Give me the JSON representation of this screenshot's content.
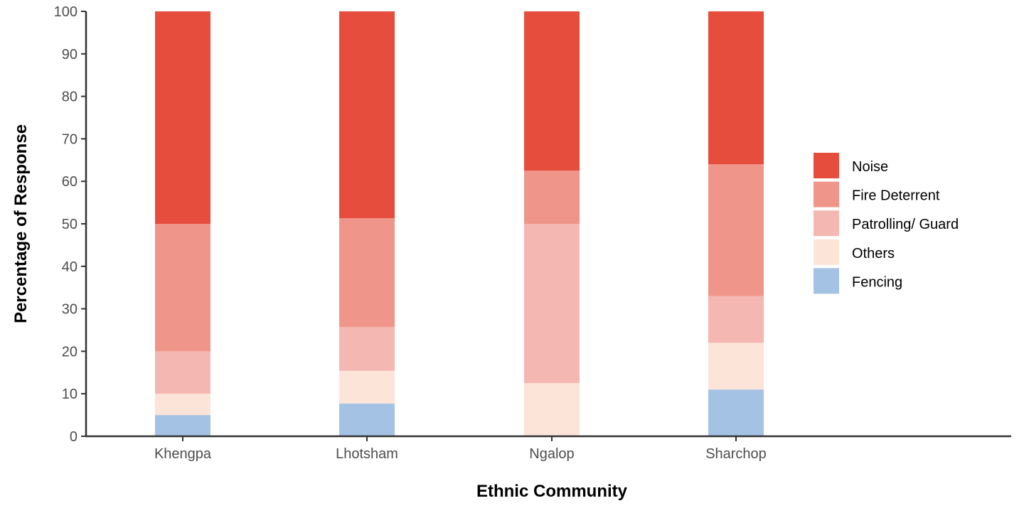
{
  "chart_data": {
    "type": "bar",
    "stacked": true,
    "title": "",
    "xlabel": "Ethnic Community",
    "ylabel": "Percentage of Response",
    "ylim": [
      0,
      100
    ],
    "yticks": [
      0,
      10,
      20,
      30,
      40,
      50,
      60,
      70,
      80,
      90,
      100
    ],
    "yticks_labels": [
      "0",
      "10",
      "20",
      "30",
      "40",
      "50",
      "60",
      "70",
      "80",
      "90",
      "100"
    ],
    "categories": [
      "Khengpa",
      "Lhotsham",
      "Ngalop",
      "Sharchop"
    ],
    "legend_position": "right",
    "series": [
      {
        "name": "Fencing",
        "color": "#A4C2E4",
        "values": [
          5,
          7.7,
          0,
          11
        ]
      },
      {
        "name": "Others",
        "color": "#FCE4D9",
        "values": [
          5,
          7.7,
          12.5,
          11
        ]
      },
      {
        "name": "Patrolling/ Guard",
        "color": "#F5B7B1",
        "values": [
          10,
          10.3,
          37.5,
          11
        ]
      },
      {
        "name": "Fire Deterrent",
        "color": "#F0958A",
        "values": [
          30,
          25.6,
          12.5,
          31
        ]
      },
      {
        "name": "Noise",
        "color": "#E64D3D",
        "values": [
          50,
          48.7,
          37.5,
          36
        ]
      }
    ],
    "legend_order": [
      "Noise",
      "Fire Deterrent",
      "Patrolling/ Guard",
      "Others",
      "Fencing"
    ]
  }
}
